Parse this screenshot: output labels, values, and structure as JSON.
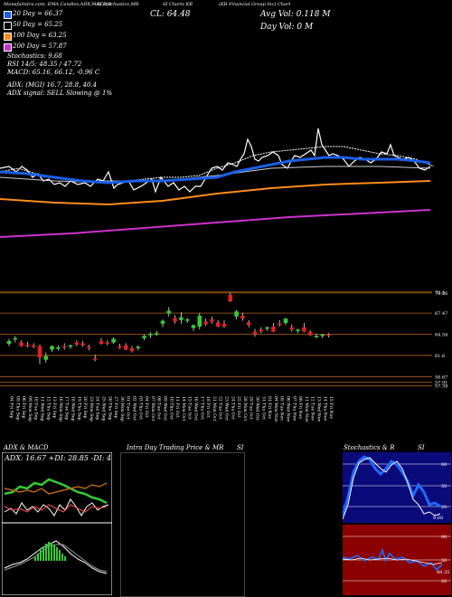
{
  "header": {
    "line1": "MunafaSutra.com, EMA,Candles,ADX,MACD,B",
    "line2": "SI,Stochastics,MR",
    "line3": "SI Charts KB",
    "line4": "(KB Financial Group Inc) Chart",
    "close": "CL: 64.48",
    "avg_vol": "Avg Vol: 0.118   M",
    "day_vol": "Day Vol: 0   M"
  },
  "legend": {
    "ema20": "20  Day  = 66.37",
    "ema50": "50  Day  = 65.25",
    "ema100": "100  Day  = 63.25",
    "ema200": "200  Day  = 57.87"
  },
  "indicators": {
    "stoch": "Stochastics: 9.68",
    "rsi": "RSI 14/5: 48.35 / 47.72",
    "macd": "MACD: 65.16, 66.12, -0.96  C",
    "adx": "ADX:                          (MGI) 16.7, 28.8, 40.4",
    "adx_signal": "ADX  signal: SELL  Slowing @ 1%"
  },
  "panels": {
    "adx_title": "ADX  & MACD",
    "adx_values": "ADX: 16.67 +DI: 28.85 -DI: 40.38",
    "intraday_title": "Intra Day Trading Price  & MR",
    "intraday_si": "SI",
    "stoch_title": "Stochastics & R",
    "stoch_si": "SI",
    "stoch_ticks": [
      "80",
      "50",
      "20",
      "9.68"
    ],
    "rsi_ticks": [
      "80",
      "50",
      "20",
      "48.35"
    ]
  },
  "colors": {
    "ema20": "#1a5fe6",
    "ema50": "#ffffff",
    "ema100": "#ff8c1a",
    "ema200": "#cc33cc",
    "up": "#33cc33",
    "down": "#e02020",
    "level": "#b5651d"
  },
  "chart_data": {
    "type": "candlestick",
    "dates": [
      "04 Fri Sep",
      "05 Thu Sep",
      "06 Fri Sep",
      "09 Mon Sep",
      "10 Tue Sep",
      "11 Wed Sep",
      "12 Thu Sep",
      "13 Fri Sep",
      "16 Mon Sep",
      "17 Tue Sep",
      "18 Wed Sep",
      "19 Thu Sep",
      "20 Fri Sep",
      "23 Mon Sep",
      "24 Tue Sep",
      "25 Wed Sep",
      "26 Thu Sep",
      "27 Fri Sep",
      "30 Mon Sep",
      "01 Tue Oct",
      "02 Wed Oct",
      "03 Thu Oct",
      "04 Fri Oct",
      "07 Mon Oct",
      "08 Tue Oct",
      "09 Wed Oct",
      "10 Thu Oct",
      "11 Fri Oct",
      "14 Mon Oct",
      "15 Tue Oct",
      "16 Wed Oct",
      "17 Thu Oct",
      "18 Fri Oct",
      "21 Mon Oct",
      "22 Tue Oct",
      "23 Wed Oct",
      "24 Thu Oct",
      "25 Fri Oct",
      "28 Mon Oct",
      "29 Tue Oct",
      "30 Wed Oct",
      "31 Thu Oct",
      "01 Fri Nov",
      "04 Mon Nov",
      "05 Tue Nov",
      "06 Wed Nov",
      "07 Thu Nov",
      "08 Fri Nov",
      "11 Mon Nov",
      "12 Tue Nov",
      "13 Wed Nov",
      "14 Thu Nov",
      "15 Fri Nov"
    ],
    "candles": [
      {
        "o": 63.2,
        "h": 63.9,
        "l": 62.9,
        "c": 63.6
      },
      {
        "o": 63.9,
        "h": 64.3,
        "l": 63.4,
        "c": 64.0
      },
      {
        "o": 63.4,
        "h": 63.7,
        "l": 62.8,
        "c": 62.9
      },
      {
        "o": 63.1,
        "h": 63.5,
        "l": 62.7,
        "c": 62.9
      },
      {
        "o": 63.0,
        "h": 63.3,
        "l": 62.6,
        "c": 62.8
      },
      {
        "o": 62.9,
        "h": 63.1,
        "l": 60.4,
        "c": 61.3
      },
      {
        "o": 61.0,
        "h": 62.0,
        "l": 60.6,
        "c": 61.5
      },
      {
        "o": 62.4,
        "h": 63.0,
        "l": 62.1,
        "c": 62.9
      },
      {
        "o": 62.6,
        "h": 63.0,
        "l": 62.3,
        "c": 62.7
      },
      {
        "o": 62.9,
        "h": 63.3,
        "l": 62.4,
        "c": 62.7
      },
      {
        "o": 62.8,
        "h": 63.1,
        "l": 62.5,
        "c": 63.0
      },
      {
        "o": 63.4,
        "h": 63.7,
        "l": 62.9,
        "c": 63.1
      },
      {
        "o": 63.3,
        "h": 63.6,
        "l": 62.8,
        "c": 63.0
      },
      {
        "o": 62.8,
        "h": 63.1,
        "l": 62.3,
        "c": 62.6
      },
      {
        "o": 61.2,
        "h": 61.7,
        "l": 60.8,
        "c": 61.1
      },
      {
        "o": 63.6,
        "h": 64.0,
        "l": 63.1,
        "c": 63.2
      },
      {
        "o": 63.4,
        "h": 63.7,
        "l": 63.0,
        "c": 63.3
      },
      {
        "o": 63.4,
        "h": 64.1,
        "l": 63.2,
        "c": 63.9
      },
      {
        "o": 62.9,
        "h": 63.2,
        "l": 62.5,
        "c": 62.7
      },
      {
        "o": 63.0,
        "h": 63.3,
        "l": 62.3,
        "c": 62.4
      },
      {
        "o": 62.6,
        "h": 62.9,
        "l": 62.0,
        "c": 62.2
      },
      {
        "o": 62.6,
        "h": 63.0,
        "l": 62.3,
        "c": 62.8
      },
      {
        "o": 64.0,
        "h": 64.5,
        "l": 63.7,
        "c": 64.3
      },
      {
        "o": 64.4,
        "h": 64.8,
        "l": 64.0,
        "c": 64.6
      },
      {
        "o": 64.6,
        "h": 65.0,
        "l": 64.3,
        "c": 64.7
      },
      {
        "o": 66.0,
        "h": 66.6,
        "l": 65.5,
        "c": 66.4
      },
      {
        "o": 67.4,
        "h": 68.3,
        "l": 67.0,
        "c": 67.8
      },
      {
        "o": 66.8,
        "h": 67.2,
        "l": 66.0,
        "c": 66.3
      },
      {
        "o": 66.5,
        "h": 67.6,
        "l": 66.0,
        "c": 66.9
      },
      {
        "o": 66.4,
        "h": 66.8,
        "l": 66.1,
        "c": 66.6
      },
      {
        "o": 65.4,
        "h": 65.9,
        "l": 65.0,
        "c": 65.8
      },
      {
        "o": 65.6,
        "h": 67.5,
        "l": 65.2,
        "c": 67.1
      },
      {
        "o": 66.3,
        "h": 66.7,
        "l": 65.7,
        "c": 65.9
      },
      {
        "o": 66.6,
        "h": 67.0,
        "l": 66.0,
        "c": 66.3
      },
      {
        "o": 66.2,
        "h": 66.5,
        "l": 65.5,
        "c": 65.6
      },
      {
        "o": 66.0,
        "h": 66.5,
        "l": 65.4,
        "c": 65.6
      },
      {
        "o": 70.0,
        "h": 70.3,
        "l": 69.0,
        "c": 69.1
      },
      {
        "o": 67.0,
        "h": 67.9,
        "l": 66.6,
        "c": 67.7
      },
      {
        "o": 67.1,
        "h": 67.5,
        "l": 66.4,
        "c": 66.7
      },
      {
        "o": 66.2,
        "h": 66.5,
        "l": 65.5,
        "c": 65.8
      },
      {
        "o": 64.9,
        "h": 65.3,
        "l": 64.2,
        "c": 64.5
      },
      {
        "o": 65.2,
        "h": 65.5,
        "l": 64.7,
        "c": 64.9
      },
      {
        "o": 65.3,
        "h": 65.6,
        "l": 65.0,
        "c": 65.5
      },
      {
        "o": 65.6,
        "h": 66.1,
        "l": 64.8,
        "c": 64.9
      },
      {
        "o": 66.0,
        "h": 66.5,
        "l": 65.6,
        "c": 65.9
      },
      {
        "o": 66.1,
        "h": 66.8,
        "l": 65.8,
        "c": 66.7
      },
      {
        "o": 65.5,
        "h": 65.9,
        "l": 64.9,
        "c": 65.2
      },
      {
        "o": 65.0,
        "h": 65.3,
        "l": 64.7,
        "c": 65.2
      },
      {
        "o": 65.5,
        "h": 66.1,
        "l": 64.8,
        "c": 64.9
      },
      {
        "o": 64.9,
        "h": 65.1,
        "l": 64.3,
        "c": 64.4
      },
      {
        "o": 64.3,
        "h": 64.6,
        "l": 64.0,
        "c": 64.3
      },
      {
        "o": 64.3,
        "h": 64.6,
        "l": 64.0,
        "c": 64.5
      },
      {
        "o": 64.5,
        "h": 64.7,
        "l": 64.1,
        "c": 64.48
      }
    ],
    "price_levels": [
      70.4,
      70.26,
      67.47,
      64.54,
      61.6,
      58.67,
      57.91,
      57.39
    ],
    "level_labels": [
      "70.4",
      "70.26",
      "67.47",
      "64.54",
      "61.6",
      "58.67",
      "57.91",
      "57.39"
    ],
    "ylim": [
      56.7,
      71.0
    ]
  }
}
